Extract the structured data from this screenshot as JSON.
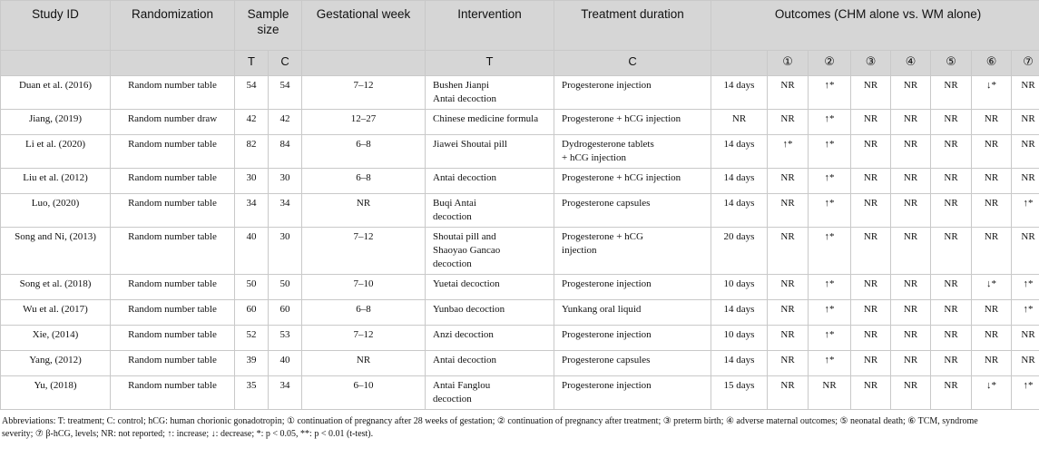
{
  "header": {
    "study_id": "Study ID",
    "randomization": "Randomization",
    "sample_size": "Sample size",
    "gestational_week": "Gestational week",
    "intervention": "Intervention",
    "treatment_duration": "Treatment duration",
    "outcomes": "Outcomes (CHM alone vs. WM alone)",
    "sub_t": "T",
    "sub_c": "C",
    "sub_intervention_t": "T",
    "sub_intervention_c": "C",
    "outcome_cols": [
      "①",
      "②",
      "③",
      "④",
      "⑤",
      "⑥",
      "⑦"
    ]
  },
  "rows": [
    {
      "study": "Duan et al. (2016)",
      "rand": "Random number table",
      "t": "54",
      "c": "54",
      "week": "7–12",
      "int_t": [
        "Bushen Jianpi",
        "Antai decoction"
      ],
      "int_c": [
        "Progesterone injection"
      ],
      "dur": "14 days",
      "o": [
        "NR",
        "↑*",
        "NR",
        "NR",
        "NR",
        "↓*",
        "NR"
      ]
    },
    {
      "study": "Jiang, (2019)",
      "rand": "Random number draw",
      "t": "42",
      "c": "42",
      "week": "12–27",
      "int_t": [
        "Chinese medicine formula"
      ],
      "int_c": [
        "Progesterone + hCG injection"
      ],
      "dur": "NR",
      "o": [
        "NR",
        "↑*",
        "NR",
        "NR",
        "NR",
        "NR",
        "NR"
      ]
    },
    {
      "study": "Li et al. (2020)",
      "rand": "Random number table",
      "t": "82",
      "c": "84",
      "week": "6–8",
      "int_t": [
        "Jiawei Shoutai pill"
      ],
      "int_c": [
        "Dydrogesterone tablets",
        "+ hCG injection"
      ],
      "dur": "14 days",
      "o": [
        "↑*",
        "↑*",
        "NR",
        "NR",
        "NR",
        "NR",
        "NR"
      ]
    },
    {
      "study": "Liu et al. (2012)",
      "rand": "Random number table",
      "t": "30",
      "c": "30",
      "week": "6–8",
      "int_t": [
        "Antai decoction"
      ],
      "int_c": [
        "Progesterone + hCG injection"
      ],
      "dur": "14 days",
      "o": [
        "NR",
        "↑*",
        "NR",
        "NR",
        "NR",
        "NR",
        "NR"
      ]
    },
    {
      "study": "Luo, (2020)",
      "rand": "Random number table",
      "t": "34",
      "c": "34",
      "week": "NR",
      "int_t": [
        "Buqi Antai",
        "decoction"
      ],
      "int_c": [
        "Progesterone capsules"
      ],
      "dur": "14 days",
      "o": [
        "NR",
        "↑*",
        "NR",
        "NR",
        "NR",
        "NR",
        "↑*"
      ]
    },
    {
      "study": "Song and Ni, (2013)",
      "rand": "Random number table",
      "t": "40",
      "c": "30",
      "week": "7–12",
      "int_t": [
        "Shoutai pill and",
        "Shaoyao Gancao",
        "decoction"
      ],
      "int_c": [
        "Progesterone + hCG",
        "injection"
      ],
      "dur": "20 days",
      "o": [
        "NR",
        "↑*",
        "NR",
        "NR",
        "NR",
        "NR",
        "NR"
      ]
    },
    {
      "study": "Song et al. (2018)",
      "rand": "Random number table",
      "t": "50",
      "c": "50",
      "week": "7–10",
      "int_t": [
        "Yuetai decoction"
      ],
      "int_c": [
        "Progesterone injection"
      ],
      "dur": "10 days",
      "o": [
        "NR",
        "↑*",
        "NR",
        "NR",
        "NR",
        "↓*",
        "↑*"
      ]
    },
    {
      "study": "Wu et al. (2017)",
      "rand": "Random number table",
      "t": "60",
      "c": "60",
      "week": "6–8",
      "int_t": [
        "Yunbao decoction"
      ],
      "int_c": [
        "Yunkang oral liquid"
      ],
      "dur": "14 days",
      "o": [
        "NR",
        "↑*",
        "NR",
        "NR",
        "NR",
        "NR",
        "↑*"
      ]
    },
    {
      "study": "Xie, (2014)",
      "rand": "Random number table",
      "t": "52",
      "c": "53",
      "week": "7–12",
      "int_t": [
        "Anzi decoction"
      ],
      "int_c": [
        "Progesterone injection"
      ],
      "dur": "10 days",
      "o": [
        "NR",
        "↑*",
        "NR",
        "NR",
        "NR",
        "NR",
        "NR"
      ]
    },
    {
      "study": "Yang, (2012)",
      "rand": "Random number table",
      "t": "39",
      "c": "40",
      "week": "NR",
      "int_t": [
        "Antai decoction"
      ],
      "int_c": [
        "Progesterone capsules"
      ],
      "dur": "14 days",
      "o": [
        "NR",
        "↑*",
        "NR",
        "NR",
        "NR",
        "NR",
        "NR"
      ]
    },
    {
      "study": "Yu, (2018)",
      "rand": "Random number table",
      "t": "35",
      "c": "34",
      "week": "6–10",
      "int_t": [
        "Antai Fanglou",
        "decoction"
      ],
      "int_c": [
        "Progesterone injection"
      ],
      "dur": "15 days",
      "o": [
        "NR",
        "NR",
        "NR",
        "NR",
        "NR",
        "↓*",
        "↑*"
      ]
    }
  ],
  "footnote": {
    "line1": "Abbreviations: T: treatment; C: control; hCG: human chorionic gonadotropin; ① continuation of pregnancy after 28 weeks of gestation; ② continuation of pregnancy after treatment; ③ preterm birth; ④ adverse maternal outcomes; ⑤ neonatal death; ⑥ TCM, syndrome",
    "line2": "severity; ⑦ β-hCG, levels; NR: not reported; ↑: increase; ↓: decrease; *: p < 0.05, **: p < 0.01 (t-test)."
  }
}
